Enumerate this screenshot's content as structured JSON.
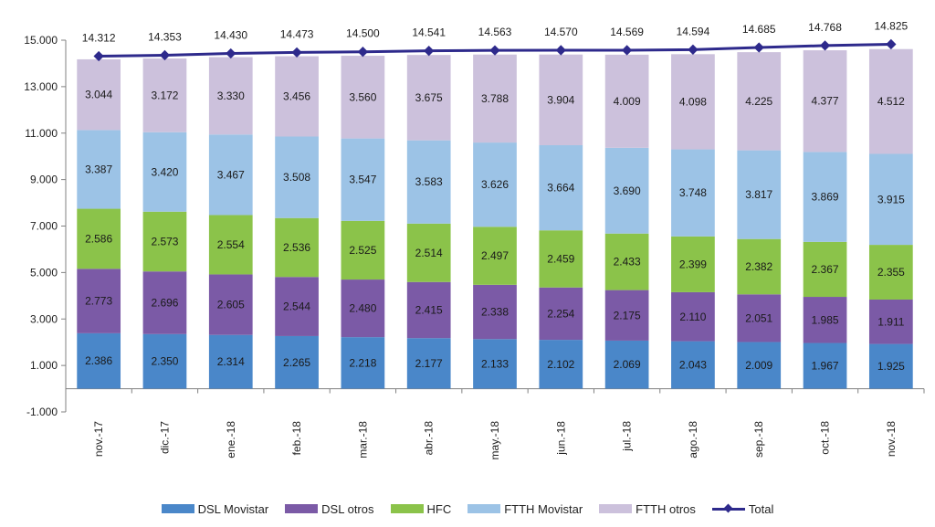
{
  "chart_data": {
    "type": "bar",
    "stacked": true,
    "title": "",
    "xlabel": "",
    "ylabel": "",
    "ylim": [
      -1000,
      15000
    ],
    "yticks": [
      "-1.000",
      "1.000",
      "3.000",
      "5.000",
      "7.000",
      "9.000",
      "11.000",
      "13.000",
      "15.000"
    ],
    "ytick_values": [
      -1000,
      1000,
      3000,
      5000,
      7000,
      9000,
      11000,
      13000,
      15000
    ],
    "grid": false,
    "legend_position": "bottom",
    "categories": [
      "nov.-17",
      "dic.-17",
      "ene.-18",
      "feb.-18",
      "mar.-18",
      "abr.-18",
      "may.-18",
      "jun.-18",
      "jul.-18",
      "ago.-18",
      "sep.-18",
      "oct.-18",
      "nov.-18"
    ],
    "series": [
      {
        "name": "DSL Movistar",
        "color": "#4a87c9",
        "values": [
          2386,
          2350,
          2314,
          2265,
          2218,
          2177,
          2133,
          2102,
          2069,
          2043,
          2009,
          1967,
          1925
        ],
        "labels": [
          "2.386",
          "2.350",
          "2.314",
          "2.265",
          "2.218",
          "2.177",
          "2.133",
          "2.102",
          "2.069",
          "2.043",
          "2.009",
          "1.967",
          "1.925"
        ]
      },
      {
        "name": "DSL otros",
        "color": "#7b5aa6",
        "values": [
          2773,
          2696,
          2605,
          2544,
          2480,
          2415,
          2338,
          2254,
          2175,
          2110,
          2051,
          1985,
          1911
        ],
        "labels": [
          "2.773",
          "2.696",
          "2.605",
          "2.544",
          "2.480",
          "2.415",
          "2.338",
          "2.254",
          "2.175",
          "2.110",
          "2.051",
          "1.985",
          "1.911"
        ]
      },
      {
        "name": "HFC",
        "color": "#8bc34a",
        "values": [
          2586,
          2573,
          2554,
          2536,
          2525,
          2514,
          2497,
          2459,
          2433,
          2399,
          2382,
          2367,
          2355
        ],
        "labels": [
          "2.586",
          "2.573",
          "2.554",
          "2.536",
          "2.525",
          "2.514",
          "2.497",
          "2.459",
          "2.433",
          "2.399",
          "2.382",
          "2.367",
          "2.355"
        ]
      },
      {
        "name": "FTTH Movistar",
        "color": "#9cc3e6",
        "values": [
          3387,
          3420,
          3467,
          3508,
          3547,
          3583,
          3626,
          3664,
          3690,
          3748,
          3817,
          3869,
          3915
        ],
        "labels": [
          "3.387",
          "3.420",
          "3.467",
          "3.508",
          "3.547",
          "3.583",
          "3.626",
          "3.664",
          "3.690",
          "3.748",
          "3.817",
          "3.869",
          "3.915"
        ]
      },
      {
        "name": "FTTH otros",
        "color": "#ccc1dc",
        "values": [
          3044,
          3172,
          3330,
          3456,
          3560,
          3675,
          3788,
          3904,
          4009,
          4098,
          4225,
          4377,
          4512
        ],
        "labels": [
          "3.044",
          "3.172",
          "3.330",
          "3.456",
          "3.560",
          "3.675",
          "3.788",
          "3.904",
          "4.009",
          "4.098",
          "4.225",
          "4.377",
          "4.512"
        ]
      }
    ],
    "line_series": {
      "name": "Total",
      "color": "#2e2a8c",
      "values": [
        14312,
        14353,
        14430,
        14473,
        14500,
        14541,
        14563,
        14570,
        14569,
        14594,
        14685,
        14768,
        14825
      ],
      "labels": [
        "14.312",
        "14.353",
        "14.430",
        "14.473",
        "14.500",
        "14.541",
        "14.563",
        "14.570",
        "14.569",
        "14.594",
        "14.685",
        "14.768",
        "14.825"
      ]
    }
  }
}
